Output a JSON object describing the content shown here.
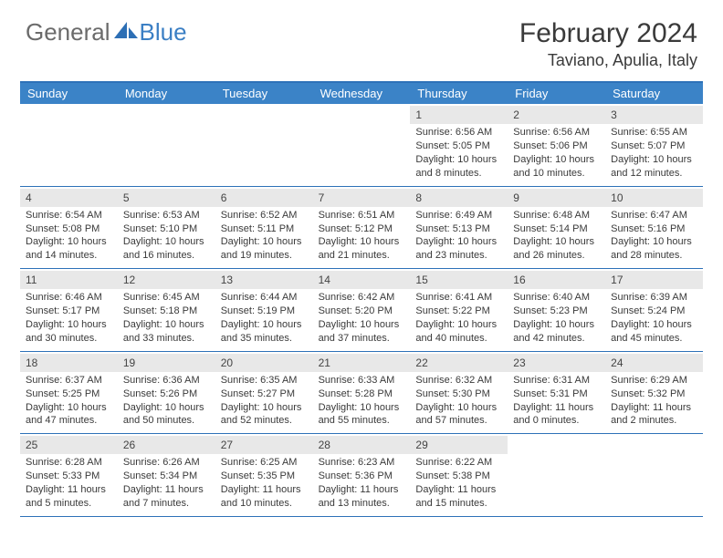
{
  "logo": {
    "part1": "General",
    "part2": "Blue"
  },
  "title": {
    "month": "February 2024",
    "location": "Taviano, Apulia, Italy"
  },
  "colors": {
    "header_bg": "#3b83c7",
    "border": "#2d71b8",
    "daynum_bg": "#e8e8e8",
    "text": "#3a3a3a",
    "logo_gray": "#6b6b6b",
    "logo_blue": "#3b7fc4"
  },
  "weekdays": [
    "Sunday",
    "Monday",
    "Tuesday",
    "Wednesday",
    "Thursday",
    "Friday",
    "Saturday"
  ],
  "weeks": [
    [
      {
        "n": "",
        "sunrise": "",
        "sunset": "",
        "daylight": ""
      },
      {
        "n": "",
        "sunrise": "",
        "sunset": "",
        "daylight": ""
      },
      {
        "n": "",
        "sunrise": "",
        "sunset": "",
        "daylight": ""
      },
      {
        "n": "",
        "sunrise": "",
        "sunset": "",
        "daylight": ""
      },
      {
        "n": "1",
        "sunrise": "Sunrise: 6:56 AM",
        "sunset": "Sunset: 5:05 PM",
        "daylight": "Daylight: 10 hours and 8 minutes."
      },
      {
        "n": "2",
        "sunrise": "Sunrise: 6:56 AM",
        "sunset": "Sunset: 5:06 PM",
        "daylight": "Daylight: 10 hours and 10 minutes."
      },
      {
        "n": "3",
        "sunrise": "Sunrise: 6:55 AM",
        "sunset": "Sunset: 5:07 PM",
        "daylight": "Daylight: 10 hours and 12 minutes."
      }
    ],
    [
      {
        "n": "4",
        "sunrise": "Sunrise: 6:54 AM",
        "sunset": "Sunset: 5:08 PM",
        "daylight": "Daylight: 10 hours and 14 minutes."
      },
      {
        "n": "5",
        "sunrise": "Sunrise: 6:53 AM",
        "sunset": "Sunset: 5:10 PM",
        "daylight": "Daylight: 10 hours and 16 minutes."
      },
      {
        "n": "6",
        "sunrise": "Sunrise: 6:52 AM",
        "sunset": "Sunset: 5:11 PM",
        "daylight": "Daylight: 10 hours and 19 minutes."
      },
      {
        "n": "7",
        "sunrise": "Sunrise: 6:51 AM",
        "sunset": "Sunset: 5:12 PM",
        "daylight": "Daylight: 10 hours and 21 minutes."
      },
      {
        "n": "8",
        "sunrise": "Sunrise: 6:49 AM",
        "sunset": "Sunset: 5:13 PM",
        "daylight": "Daylight: 10 hours and 23 minutes."
      },
      {
        "n": "9",
        "sunrise": "Sunrise: 6:48 AM",
        "sunset": "Sunset: 5:14 PM",
        "daylight": "Daylight: 10 hours and 26 minutes."
      },
      {
        "n": "10",
        "sunrise": "Sunrise: 6:47 AM",
        "sunset": "Sunset: 5:16 PM",
        "daylight": "Daylight: 10 hours and 28 minutes."
      }
    ],
    [
      {
        "n": "11",
        "sunrise": "Sunrise: 6:46 AM",
        "sunset": "Sunset: 5:17 PM",
        "daylight": "Daylight: 10 hours and 30 minutes."
      },
      {
        "n": "12",
        "sunrise": "Sunrise: 6:45 AM",
        "sunset": "Sunset: 5:18 PM",
        "daylight": "Daylight: 10 hours and 33 minutes."
      },
      {
        "n": "13",
        "sunrise": "Sunrise: 6:44 AM",
        "sunset": "Sunset: 5:19 PM",
        "daylight": "Daylight: 10 hours and 35 minutes."
      },
      {
        "n": "14",
        "sunrise": "Sunrise: 6:42 AM",
        "sunset": "Sunset: 5:20 PM",
        "daylight": "Daylight: 10 hours and 37 minutes."
      },
      {
        "n": "15",
        "sunrise": "Sunrise: 6:41 AM",
        "sunset": "Sunset: 5:22 PM",
        "daylight": "Daylight: 10 hours and 40 minutes."
      },
      {
        "n": "16",
        "sunrise": "Sunrise: 6:40 AM",
        "sunset": "Sunset: 5:23 PM",
        "daylight": "Daylight: 10 hours and 42 minutes."
      },
      {
        "n": "17",
        "sunrise": "Sunrise: 6:39 AM",
        "sunset": "Sunset: 5:24 PM",
        "daylight": "Daylight: 10 hours and 45 minutes."
      }
    ],
    [
      {
        "n": "18",
        "sunrise": "Sunrise: 6:37 AM",
        "sunset": "Sunset: 5:25 PM",
        "daylight": "Daylight: 10 hours and 47 minutes."
      },
      {
        "n": "19",
        "sunrise": "Sunrise: 6:36 AM",
        "sunset": "Sunset: 5:26 PM",
        "daylight": "Daylight: 10 hours and 50 minutes."
      },
      {
        "n": "20",
        "sunrise": "Sunrise: 6:35 AM",
        "sunset": "Sunset: 5:27 PM",
        "daylight": "Daylight: 10 hours and 52 minutes."
      },
      {
        "n": "21",
        "sunrise": "Sunrise: 6:33 AM",
        "sunset": "Sunset: 5:28 PM",
        "daylight": "Daylight: 10 hours and 55 minutes."
      },
      {
        "n": "22",
        "sunrise": "Sunrise: 6:32 AM",
        "sunset": "Sunset: 5:30 PM",
        "daylight": "Daylight: 10 hours and 57 minutes."
      },
      {
        "n": "23",
        "sunrise": "Sunrise: 6:31 AM",
        "sunset": "Sunset: 5:31 PM",
        "daylight": "Daylight: 11 hours and 0 minutes."
      },
      {
        "n": "24",
        "sunrise": "Sunrise: 6:29 AM",
        "sunset": "Sunset: 5:32 PM",
        "daylight": "Daylight: 11 hours and 2 minutes."
      }
    ],
    [
      {
        "n": "25",
        "sunrise": "Sunrise: 6:28 AM",
        "sunset": "Sunset: 5:33 PM",
        "daylight": "Daylight: 11 hours and 5 minutes."
      },
      {
        "n": "26",
        "sunrise": "Sunrise: 6:26 AM",
        "sunset": "Sunset: 5:34 PM",
        "daylight": "Daylight: 11 hours and 7 minutes."
      },
      {
        "n": "27",
        "sunrise": "Sunrise: 6:25 AM",
        "sunset": "Sunset: 5:35 PM",
        "daylight": "Daylight: 11 hours and 10 minutes."
      },
      {
        "n": "28",
        "sunrise": "Sunrise: 6:23 AM",
        "sunset": "Sunset: 5:36 PM",
        "daylight": "Daylight: 11 hours and 13 minutes."
      },
      {
        "n": "29",
        "sunrise": "Sunrise: 6:22 AM",
        "sunset": "Sunset: 5:38 PM",
        "daylight": "Daylight: 11 hours and 15 minutes."
      },
      {
        "n": "",
        "sunrise": "",
        "sunset": "",
        "daylight": ""
      },
      {
        "n": "",
        "sunrise": "",
        "sunset": "",
        "daylight": ""
      }
    ]
  ]
}
